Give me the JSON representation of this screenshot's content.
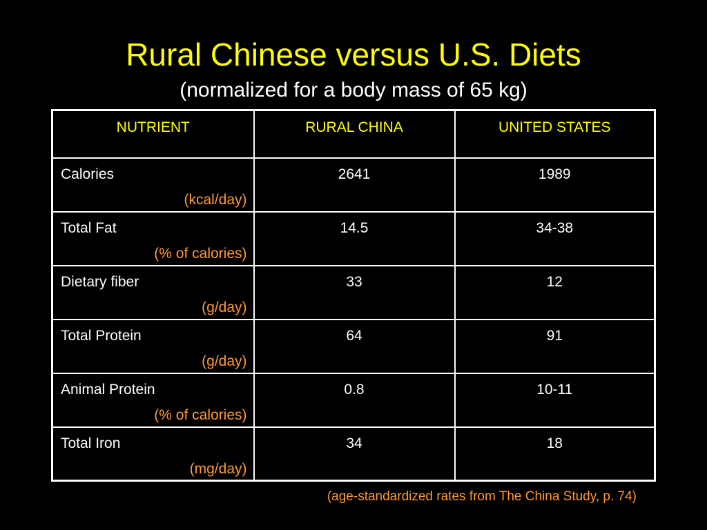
{
  "slide": {
    "title": "Rural Chinese versus U.S. Diets",
    "subtitle": "(normalized for a body mass of 65 kg)",
    "footnote": "(age-standardized rates from The China Study, p. 74)"
  },
  "colors": {
    "background": "#000000",
    "title": "#ffff00",
    "header_text": "#ffff00",
    "unit_text": "#ff9933",
    "body_text": "#ffffff"
  },
  "table": {
    "headers": [
      "NUTRIENT",
      "RURAL CHINA",
      "UNITED STATES"
    ],
    "rows": [
      {
        "nutrient": "Calories",
        "unit": "(kcal/day)",
        "rural_china": "2641",
        "united_states": "1989"
      },
      {
        "nutrient": "Total Fat",
        "unit": "(% of calories)",
        "rural_china": "14.5",
        "united_states": "34-38"
      },
      {
        "nutrient": "Dietary fiber",
        "unit": "(g/day)",
        "rural_china": "33",
        "united_states": "12"
      },
      {
        "nutrient": "Total Protein",
        "unit": "(g/day)",
        "rural_china": "64",
        "united_states": "91"
      },
      {
        "nutrient": "Animal Protein",
        "unit": "(% of calories)",
        "rural_china": "0.8",
        "united_states": "10-11"
      },
      {
        "nutrient": "Total Iron",
        "unit": "(mg/day)",
        "rural_china": "34",
        "united_states": "18"
      }
    ]
  }
}
